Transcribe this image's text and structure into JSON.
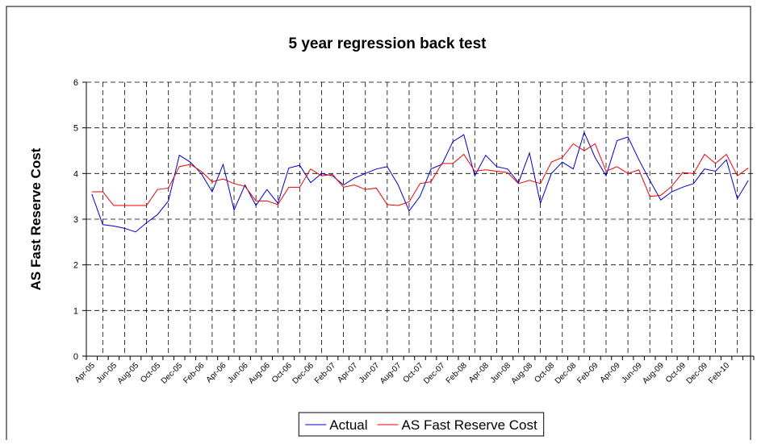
{
  "chart_data": {
    "type": "line",
    "title": "5 year regression back test",
    "y_label": "AS Fast Reserve Cost",
    "categories": [
      "Apr-05",
      null,
      "Jun-05",
      null,
      "Aug-05",
      null,
      "Oct-05",
      null,
      "Dec-05",
      null,
      "Feb-06",
      null,
      "Apr-06",
      null,
      "Jun-06",
      null,
      "Aug-06",
      null,
      "Oct-06",
      null,
      "Dec-06",
      null,
      "Feb-07",
      null,
      "Apr-07",
      null,
      "Jun-07",
      null,
      "Aug-07",
      null,
      "Oct-07",
      null,
      "Dec-07",
      null,
      "Feb-08",
      null,
      "Apr-08",
      null,
      "Jun-08",
      null,
      "Aug-08",
      null,
      "Oct-08",
      null,
      "Dec-08",
      null,
      "Feb-09",
      null,
      "Apr-09",
      null,
      "Jun-09",
      null,
      "Aug-09",
      null,
      "Oct-09",
      null,
      "Dec-09",
      null,
      "Feb-10",
      null,
      null
    ],
    "series": [
      {
        "name": "Actual",
        "color": "#0000cc",
        "values": [
          3.55,
          2.88,
          2.85,
          2.8,
          2.72,
          2.92,
          3.1,
          3.4,
          4.4,
          4.25,
          4.0,
          3.6,
          4.2,
          3.2,
          3.75,
          3.3,
          3.65,
          3.35,
          4.12,
          4.18,
          3.8,
          4.0,
          3.95,
          3.75,
          3.9,
          4.0,
          4.1,
          4.15,
          3.75,
          3.18,
          3.5,
          4.1,
          4.2,
          4.7,
          4.85,
          3.95,
          4.4,
          4.15,
          4.1,
          3.8,
          4.45,
          3.35,
          4.0,
          4.25,
          4.1,
          4.9,
          4.35,
          3.95,
          4.72,
          4.8,
          4.3,
          3.85,
          3.42,
          3.6,
          3.7,
          3.78,
          4.1,
          4.05,
          4.3,
          3.45,
          3.85
        ]
      },
      {
        "name": "AS Fast Reserve Cost",
        "color": "#ee0000",
        "values": [
          3.6,
          3.6,
          3.3,
          3.3,
          3.3,
          3.3,
          3.65,
          3.68,
          4.15,
          4.2,
          4.05,
          3.82,
          3.88,
          3.78,
          3.72,
          3.4,
          3.4,
          3.32,
          3.7,
          3.7,
          4.1,
          3.95,
          3.98,
          3.7,
          3.75,
          3.65,
          3.68,
          3.32,
          3.3,
          3.38,
          3.78,
          3.82,
          4.22,
          4.22,
          4.42,
          4.05,
          4.08,
          4.05,
          4.02,
          3.78,
          3.85,
          3.78,
          4.25,
          4.35,
          4.65,
          4.5,
          4.65,
          4.05,
          4.15,
          4.0,
          4.08,
          3.5,
          3.52,
          3.72,
          4.02,
          4.0,
          4.42,
          4.22,
          4.42,
          3.95,
          4.12
        ]
      }
    ],
    "ylim": [
      0,
      6
    ],
    "yticks": [
      0,
      1,
      2,
      3,
      4,
      5,
      6
    ],
    "grid": true,
    "legend": "bottom"
  }
}
